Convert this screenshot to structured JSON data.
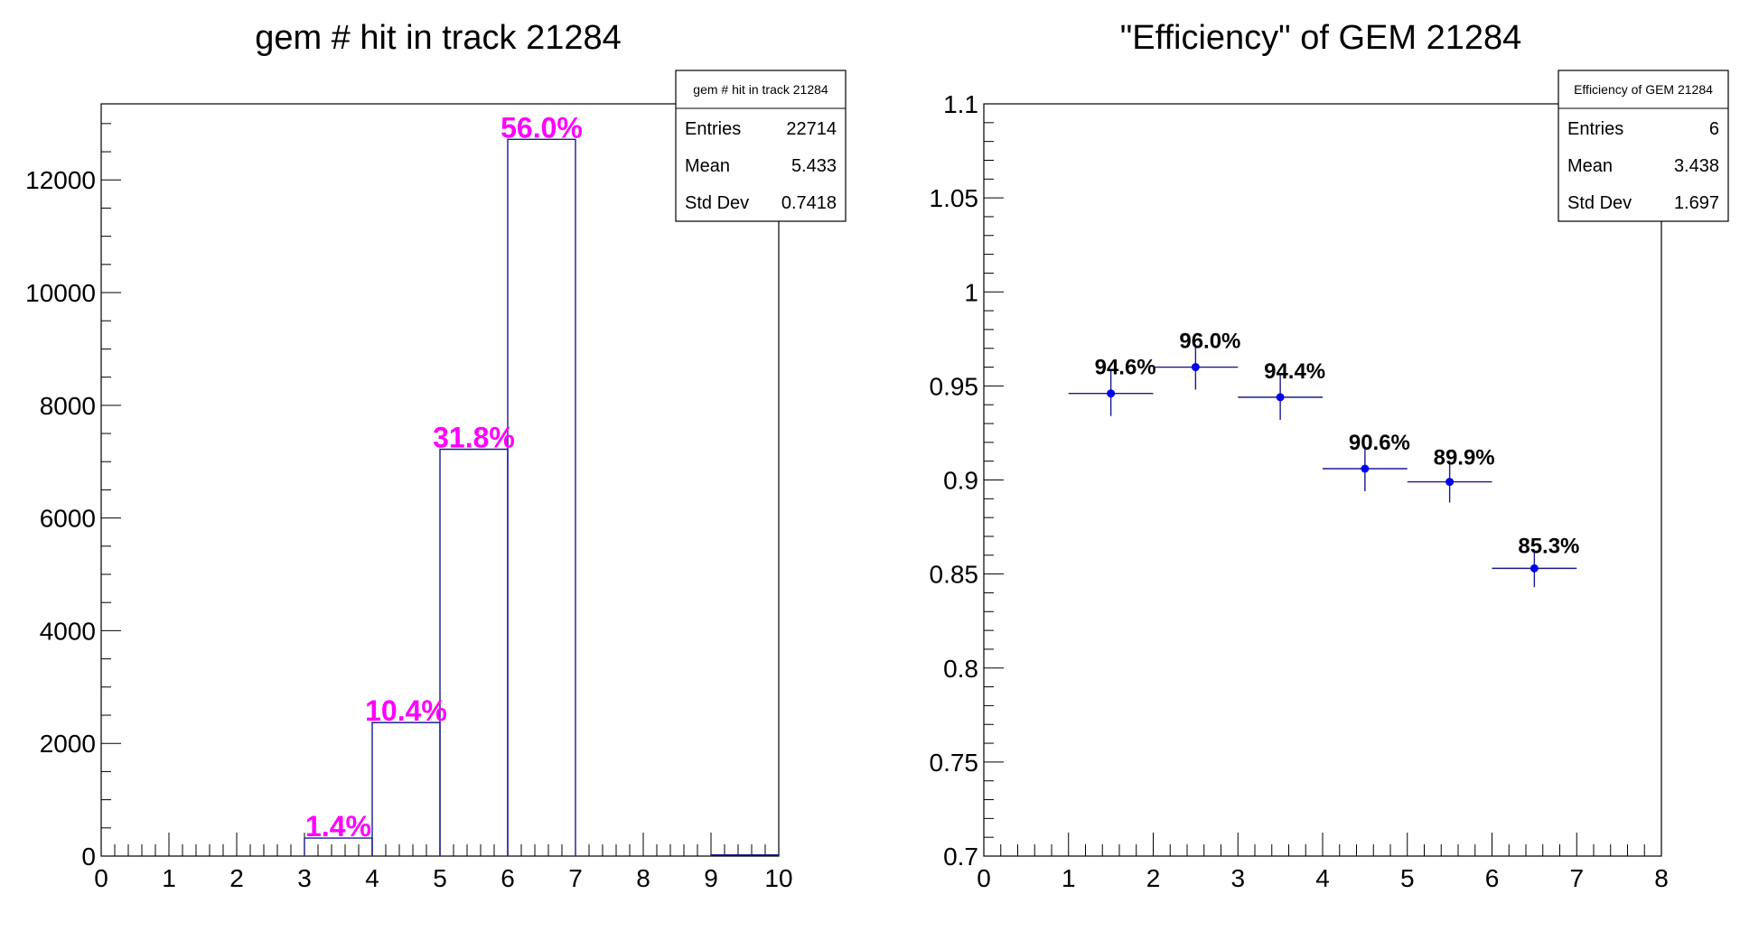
{
  "chart_data": [
    {
      "type": "bar",
      "title": "gem # hit in track 21284",
      "xlabel": "",
      "ylabel": "",
      "xlim": [
        0,
        10
      ],
      "ylim": [
        0,
        13350
      ],
      "x_ticks": [
        "0",
        "1",
        "2",
        "3",
        "4",
        "5",
        "6",
        "7",
        "8",
        "9",
        "10"
      ],
      "y_ticks": [
        "0",
        "2000",
        "4000",
        "6000",
        "8000",
        "10000",
        "12000"
      ],
      "bins": [
        {
          "low": 3,
          "high": 4,
          "value": 320,
          "label": "1.4%"
        },
        {
          "low": 4,
          "high": 5,
          "value": 2370,
          "label": "10.4%"
        },
        {
          "low": 5,
          "high": 6,
          "value": 7220,
          "label": "31.8%"
        },
        {
          "low": 6,
          "high": 7,
          "value": 12720,
          "label": "56.0%"
        },
        {
          "low": 9,
          "high": 10,
          "value": 20,
          "label": ""
        }
      ],
      "line_color": "#1a1a8c",
      "label_color": "#ff00ff",
      "grid": false,
      "stats": {
        "title": "gem # hit in track 21284",
        "rows": [
          {
            "name": "Entries",
            "value": "22714"
          },
          {
            "name": "Mean",
            "value": "5.433"
          },
          {
            "name": "Std Dev",
            "value": "0.7418"
          }
        ]
      }
    },
    {
      "type": "scatter",
      "title": "\"Efficiency\" of GEM 21284",
      "xlabel": "",
      "ylabel": "",
      "xlim": [
        0,
        8
      ],
      "ylim": [
        0.7,
        1.1
      ],
      "x_ticks": [
        "0",
        "1",
        "2",
        "3",
        "4",
        "5",
        "6",
        "7",
        "8"
      ],
      "y_ticks": [
        "0.7",
        "0.75",
        "0.8",
        "0.85",
        "0.9",
        "0.95",
        "1",
        "1.05",
        "1.1"
      ],
      "points": [
        {
          "x": 1.5,
          "y": 0.946,
          "xerr": 0.5,
          "yerr": 0.012,
          "label": "94.6%"
        },
        {
          "x": 2.5,
          "y": 0.96,
          "xerr": 0.5,
          "yerr": 0.012,
          "label": "96.0%"
        },
        {
          "x": 3.5,
          "y": 0.944,
          "xerr": 0.5,
          "yerr": 0.012,
          "label": "94.4%"
        },
        {
          "x": 4.5,
          "y": 0.906,
          "xerr": 0.5,
          "yerr": 0.012,
          "label": "90.6%"
        },
        {
          "x": 5.5,
          "y": 0.899,
          "xerr": 0.5,
          "yerr": 0.011,
          "label": "89.9%"
        },
        {
          "x": 6.5,
          "y": 0.853,
          "xerr": 0.5,
          "yerr": 0.01,
          "label": "85.3%"
        }
      ],
      "marker_color": "#0000ee",
      "grid": false,
      "stats": {
        "title": "Efficiency of GEM 21284",
        "rows": [
          {
            "name": "Entries",
            "value": "6"
          },
          {
            "name": "Mean",
            "value": "3.438"
          },
          {
            "name": "Std Dev",
            "value": "1.697"
          }
        ]
      }
    }
  ]
}
